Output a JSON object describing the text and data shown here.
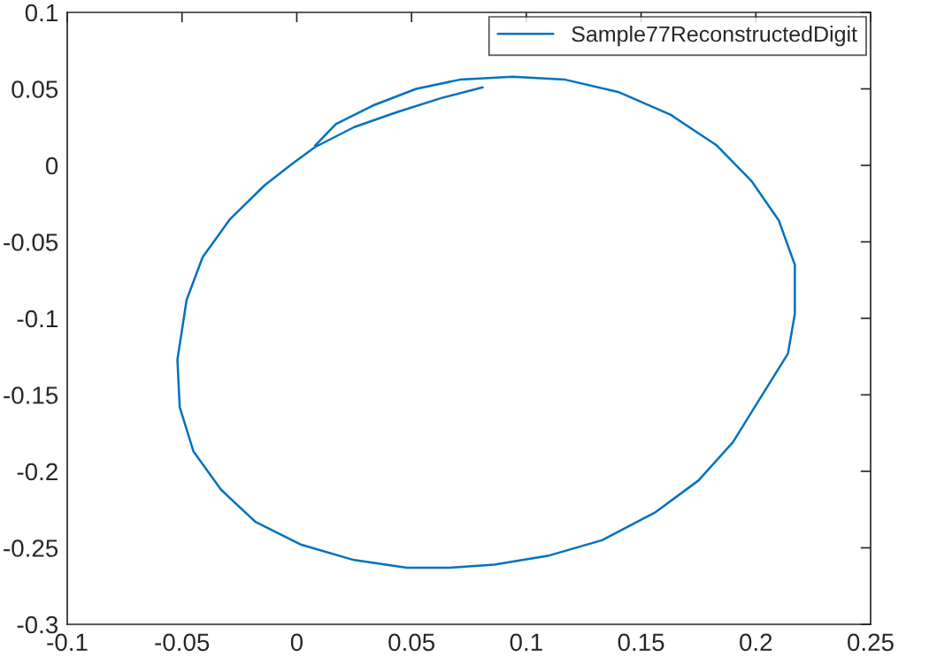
{
  "chart_data": {
    "type": "line",
    "xlim": [
      -0.1,
      0.25
    ],
    "ylim": [
      -0.3,
      0.1
    ],
    "xticks": [
      -0.1,
      -0.05,
      0,
      0.05,
      0.1,
      0.15,
      0.2,
      0.25
    ],
    "yticks": [
      -0.3,
      -0.25,
      -0.2,
      -0.15,
      -0.1,
      -0.05,
      0,
      0.05,
      0.1
    ],
    "grid": false,
    "legend": "top right",
    "marker": "none",
    "line_style": "solid",
    "series": [
      {
        "name": "Sample77ReconstructedDigit",
        "color": "#0072bd",
        "x": [
          0.081,
          0.063,
          0.044,
          0.025,
          0.008,
          -0.002,
          -0.014,
          -0.029,
          -0.041,
          -0.048,
          -0.052,
          -0.051,
          -0.045,
          -0.033,
          -0.018,
          0.002,
          0.025,
          0.048,
          0.066,
          0.086,
          0.11,
          0.133,
          0.156,
          0.175,
          0.19,
          0.202,
          0.214,
          0.217,
          0.217,
          0.21,
          0.198,
          0.183,
          0.163,
          0.14,
          0.117,
          0.094,
          0.071,
          0.052,
          0.033,
          0.017,
          0.008
        ],
        "values": [
          0.051,
          0.044,
          0.035,
          0.025,
          0.012,
          0.001,
          -0.013,
          -0.035,
          -0.06,
          -0.088,
          -0.127,
          -0.158,
          -0.187,
          -0.212,
          -0.233,
          -0.248,
          -0.258,
          -0.263,
          -0.263,
          -0.261,
          -0.255,
          -0.245,
          -0.227,
          -0.206,
          -0.181,
          -0.152,
          -0.123,
          -0.097,
          -0.065,
          -0.036,
          -0.01,
          0.013,
          0.033,
          0.048,
          0.056,
          0.058,
          0.056,
          0.05,
          0.039,
          0.027,
          0.013
        ]
      }
    ]
  }
}
